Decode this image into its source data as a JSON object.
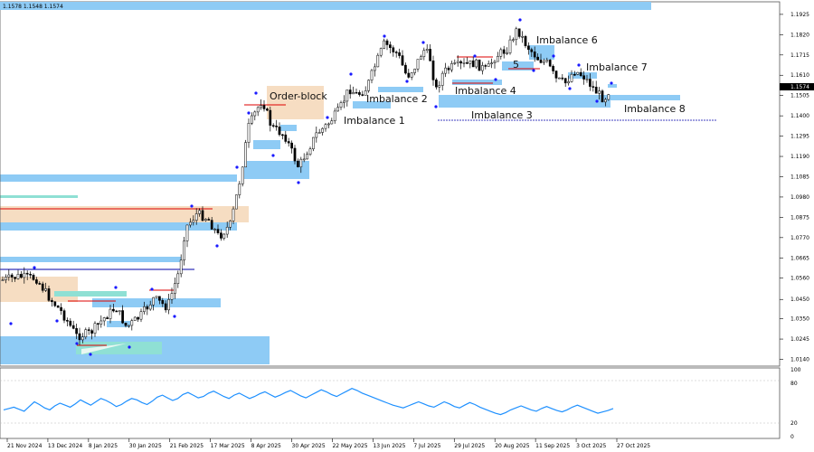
{
  "info_text": "1.1578 1.1548 1.1574",
  "colors": {
    "zone": "#8ecbf5",
    "order_block": "#f6ddc2",
    "teal": "#8fe0d4",
    "candle": "#000000",
    "fractal": "#1a1aff",
    "red_line": "#dd0000",
    "blue_line": "#0000aa",
    "rsi": "#1e90ff"
  },
  "chart_data": {
    "type": "candlestick",
    "price_axis": {
      "ticks": [
        "1.1925",
        "1.1820",
        "1.1715",
        "1.1610",
        "1.1505",
        "1.1400",
        "1.1295",
        "1.1190",
        "1.1085",
        "1.0980",
        "1.0875",
        "1.0770",
        "1.0665",
        "1.0560",
        "1.0450",
        "1.0350",
        "1.0245",
        "1.0140"
      ],
      "range": [
        1.0105,
        1.199
      ],
      "current_price": "1.1574"
    },
    "date_axis": [
      "21 Nov 2024",
      "13 Dec 2024",
      "8 Jan 2025",
      "30 Jan 2025",
      "21 Feb 2025",
      "17 Mar 2025",
      "8 Apr 2025",
      "30 Apr 2025",
      "22 May 2025",
      "13 Jun 2025",
      "7 Jul 2025",
      "29 Jul 2025",
      "20 Aug 2025",
      "11 Sep 2025",
      "3 Oct 2025",
      "27 Oct 2025"
    ],
    "annotations": [
      "Order-block",
      "Imbalance 1",
      "Imbalance 2",
      "Imbalance 3",
      "Imbalance 4",
      "5",
      "Imbalance 6",
      "Imbalance 7",
      "Imbalance 8"
    ],
    "rsi": {
      "ticks": [
        "100",
        "80",
        "20",
        "0"
      ],
      "range": [
        0,
        100
      ],
      "values": [
        40,
        42,
        44,
        41,
        38,
        45,
        52,
        48,
        43,
        40,
        46,
        50,
        47,
        44,
        49,
        55,
        51,
        47,
        52,
        57,
        54,
        50,
        45,
        48,
        53,
        57,
        55,
        51,
        48,
        53,
        59,
        62,
        58,
        54,
        57,
        63,
        66,
        62,
        58,
        60,
        65,
        68,
        64,
        60,
        57,
        62,
        65,
        61,
        57,
        60,
        64,
        67,
        63,
        59,
        62,
        66,
        69,
        65,
        61,
        58,
        62,
        66,
        70,
        67,
        63,
        60,
        64,
        68,
        72,
        69,
        65,
        62,
        59,
        56,
        53,
        50,
        47,
        45,
        43,
        46,
        49,
        52,
        49,
        46,
        44,
        48,
        52,
        49,
        45,
        43,
        47,
        51,
        48,
        44,
        41,
        38,
        35,
        33,
        36,
        40,
        43,
        46,
        43,
        40,
        38,
        42,
        45,
        42,
        39,
        37,
        40,
        44,
        47,
        44,
        41,
        38,
        35,
        37,
        39,
        42
      ]
    }
  }
}
